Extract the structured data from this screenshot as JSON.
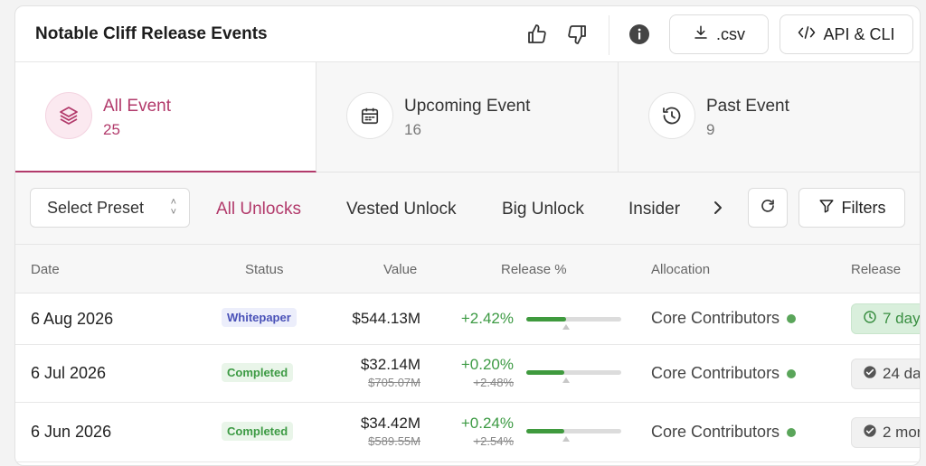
{
  "header": {
    "title": "Notable Cliff Release Events",
    "csv_label": ".csv",
    "api_label": "API & CLI"
  },
  "tabs": [
    {
      "label": "All Event",
      "count": "25"
    },
    {
      "label": "Upcoming Event",
      "count": "16"
    },
    {
      "label": "Past Event",
      "count": "9"
    }
  ],
  "toolbar": {
    "preset_label": "Select Preset",
    "filter_tabs": [
      "All Unlocks",
      "Vested Unlock",
      "Big Unlock",
      "Insider"
    ],
    "filters_label": "Filters"
  },
  "table": {
    "columns": [
      "Date",
      "Status",
      "Value",
      "Release %",
      "Allocation",
      "Release"
    ],
    "rows": [
      {
        "date": "6 Aug 2026",
        "status": "Whitepaper",
        "value": "$544.13M",
        "value_old": "",
        "pct": "+2.42%",
        "pct_old": "",
        "bar_fill": 0.42,
        "allocation": "Core Contributors",
        "release": "7 day"
      },
      {
        "date": "6 Jul 2026",
        "status": "Completed",
        "value": "$32.14M",
        "value_old": "$705.07M",
        "pct": "+0.20%",
        "pct_old": "+2.48%",
        "bar_fill": 0.4,
        "allocation": "Core Contributors",
        "release": "24 da"
      },
      {
        "date": "6 Jun 2026",
        "status": "Completed",
        "value": "$34.42M",
        "value_old": "$589.55M",
        "pct": "+0.24%",
        "pct_old": "+2.54%",
        "bar_fill": 0.4,
        "allocation": "Core Contributors",
        "release": "2 mor"
      }
    ]
  },
  "colors": {
    "accent": "#b23a6b",
    "positive": "#3c9a43"
  }
}
